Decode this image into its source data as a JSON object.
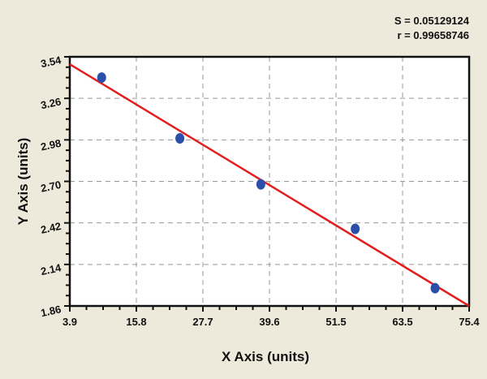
{
  "chart_data": {
    "type": "scatter",
    "title": "",
    "xlabel": "X Axis (units)",
    "ylabel": "Y Axis (units)",
    "xlim": [
      3.9,
      75.4
    ],
    "ylim": [
      1.86,
      3.54
    ],
    "xticks": [
      "3.9",
      "15.8",
      "27.7",
      "39.6",
      "51.5",
      "63.5",
      "75.4"
    ],
    "yticks": [
      "3.54",
      "3.26",
      "2.98",
      "2.70",
      "2.42",
      "2.14",
      "1.86"
    ],
    "grid": true,
    "points": [
      {
        "x": 9.6,
        "y": 3.4
      },
      {
        "x": 23.6,
        "y": 2.99
      },
      {
        "x": 38.1,
        "y": 2.68
      },
      {
        "x": 55.0,
        "y": 2.38
      },
      {
        "x": 69.3,
        "y": 1.98
      }
    ],
    "fit_line": {
      "x": [
        3.9,
        75.4
      ],
      "y": [
        3.49,
        1.86
      ]
    },
    "annotations": {
      "s": "S = 0.05129124",
      "r": "r = 0.99658746"
    },
    "colors": {
      "points": "#2a4fa8",
      "line": "#e31e1e",
      "background": "#edeadb",
      "plot": "#ffffff",
      "grid": "#999999"
    }
  }
}
